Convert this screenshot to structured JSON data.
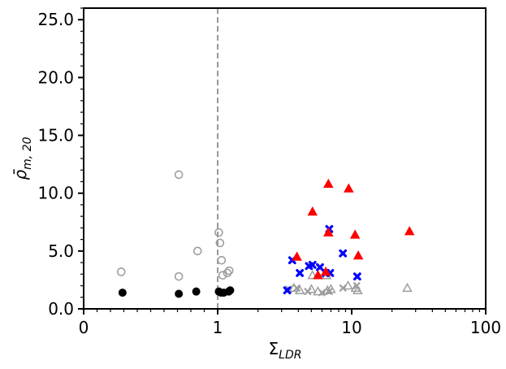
{
  "chart_data": {
    "type": "scatter",
    "xlabel_main": "Σ",
    "xlabel_sub": "LDR",
    "ylabel_main": "ρ̄",
    "ylabel_sub": "m, 20",
    "x_scale": "symlog",
    "x_linthresh": 1,
    "xlim": [
      0,
      100
    ],
    "ylim": [
      0,
      26
    ],
    "x_ticks": [
      {
        "value": 0,
        "label": "0"
      },
      {
        "value": 1,
        "label": "1"
      },
      {
        "value": 10,
        "label": "10"
      },
      {
        "value": 100,
        "label": "100"
      }
    ],
    "y_ticks": [
      {
        "value": 0,
        "label": "0.0"
      },
      {
        "value": 5,
        "label": "5.0"
      },
      {
        "value": 10,
        "label": "10.0"
      },
      {
        "value": 15,
        "label": "15.0"
      },
      {
        "value": 20,
        "label": "20.0"
      },
      {
        "value": 25,
        "label": "25.0"
      }
    ],
    "vline": {
      "x": 1,
      "color": "#999999",
      "style": "dashed"
    },
    "series": [
      {
        "marker": "circle-open",
        "color": "#9e9e9e",
        "points": [
          {
            "x": 0.28,
            "y": 3.2
          },
          {
            "x": 0.71,
            "y": 2.8
          },
          {
            "x": 0.71,
            "y": 11.6
          },
          {
            "x": 0.85,
            "y": 5.0
          },
          {
            "x": 1.02,
            "y": 6.6
          },
          {
            "x": 1.04,
            "y": 5.7
          },
          {
            "x": 1.07,
            "y": 4.2
          },
          {
            "x": 1.09,
            "y": 2.9
          },
          {
            "x": 1.18,
            "y": 3.1
          },
          {
            "x": 1.22,
            "y": 3.3
          }
        ]
      },
      {
        "marker": "circle-filled",
        "color": "#000000",
        "points": [
          {
            "x": 0.29,
            "y": 1.4
          },
          {
            "x": 0.71,
            "y": 1.3
          },
          {
            "x": 0.84,
            "y": 1.5
          },
          {
            "x": 1.02,
            "y": 1.5
          },
          {
            "x": 1.06,
            "y": 1.4
          },
          {
            "x": 1.11,
            "y": 1.4
          },
          {
            "x": 1.21,
            "y": 1.5
          },
          {
            "x": 1.24,
            "y": 1.6
          }
        ]
      },
      {
        "marker": "triangle-open",
        "color": "#9e9e9e",
        "points": [
          {
            "x": 3.7,
            "y": 1.8
          },
          {
            "x": 4.1,
            "y": 1.6
          },
          {
            "x": 5.0,
            "y": 1.7
          },
          {
            "x": 5.1,
            "y": 2.9
          },
          {
            "x": 5.6,
            "y": 1.5
          },
          {
            "x": 6.5,
            "y": 2.9
          },
          {
            "x": 6.6,
            "y": 1.6
          },
          {
            "x": 7.0,
            "y": 1.7
          },
          {
            "x": 9.4,
            "y": 2.0
          },
          {
            "x": 10.7,
            "y": 1.8
          },
          {
            "x": 11.1,
            "y": 1.6
          },
          {
            "x": 26.0,
            "y": 1.8
          }
        ]
      },
      {
        "marker": "x-open",
        "color": "#9e9e9e",
        "points": [
          {
            "x": 3.4,
            "y": 1.7
          },
          {
            "x": 3.9,
            "y": 1.8
          },
          {
            "x": 4.7,
            "y": 1.5
          },
          {
            "x": 6.0,
            "y": 1.4
          },
          {
            "x": 6.8,
            "y": 1.5
          },
          {
            "x": 8.6,
            "y": 1.8
          },
          {
            "x": 10.9,
            "y": 2.0
          }
        ]
      },
      {
        "marker": "x-filled",
        "color": "#0000ff",
        "points": [
          {
            "x": 3.3,
            "y": 1.6
          },
          {
            "x": 3.6,
            "y": 4.2
          },
          {
            "x": 4.1,
            "y": 3.1
          },
          {
            "x": 4.8,
            "y": 3.7
          },
          {
            "x": 5.1,
            "y": 3.8
          },
          {
            "x": 5.8,
            "y": 3.6
          },
          {
            "x": 6.4,
            "y": 3.1
          },
          {
            "x": 6.9,
            "y": 3.1
          },
          {
            "x": 6.8,
            "y": 6.9
          },
          {
            "x": 8.6,
            "y": 4.8
          },
          {
            "x": 11.0,
            "y": 2.8
          }
        ]
      },
      {
        "marker": "triangle-filled",
        "color": "#ff0000",
        "points": [
          {
            "x": 3.9,
            "y": 4.5
          },
          {
            "x": 5.1,
            "y": 8.4
          },
          {
            "x": 5.6,
            "y": 2.9
          },
          {
            "x": 6.4,
            "y": 3.2
          },
          {
            "x": 6.7,
            "y": 6.6
          },
          {
            "x": 6.7,
            "y": 10.8
          },
          {
            "x": 9.5,
            "y": 10.4
          },
          {
            "x": 10.6,
            "y": 6.4
          },
          {
            "x": 11.2,
            "y": 4.6
          },
          {
            "x": 27.0,
            "y": 6.7
          }
        ]
      }
    ]
  }
}
